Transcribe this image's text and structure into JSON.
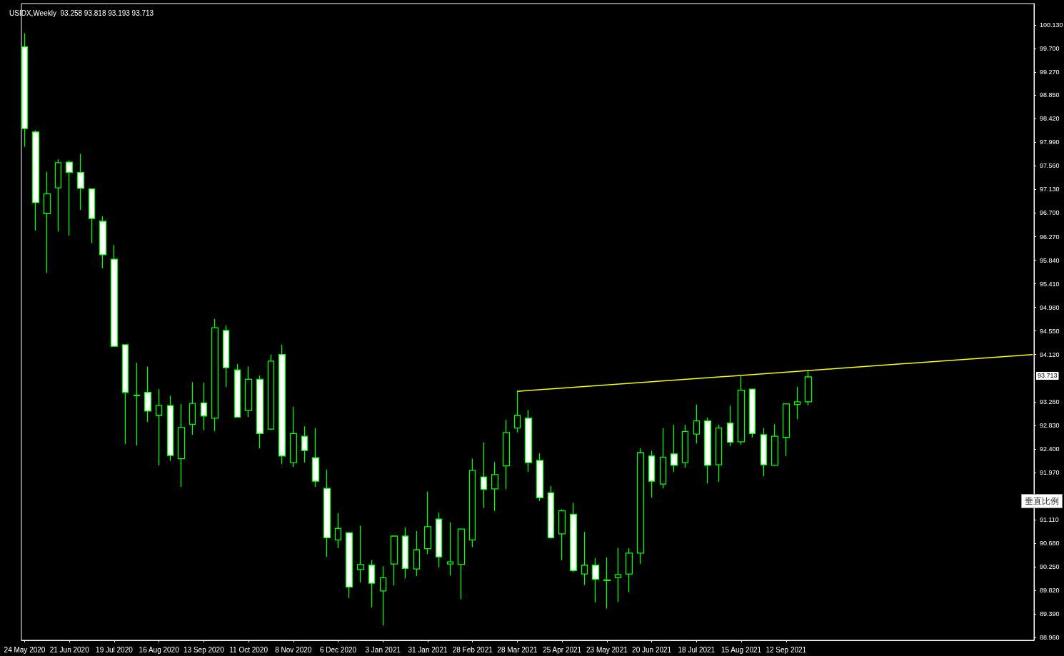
{
  "chart_data": {
    "type": "candlestick",
    "title": "USIDX,Weekly  93.258 93.818 93.193 93.713",
    "x": [
      "2020-05-24",
      "2020-05-31",
      "2020-06-07",
      "2020-06-14",
      "2020-06-21",
      "2020-06-28",
      "2020-07-05",
      "2020-07-12",
      "2020-07-19",
      "2020-07-26",
      "2020-08-02",
      "2020-08-09",
      "2020-08-16",
      "2020-08-23",
      "2020-08-30",
      "2020-09-06",
      "2020-09-13",
      "2020-09-20",
      "2020-09-27",
      "2020-10-04",
      "2020-10-11",
      "2020-10-18",
      "2020-10-25",
      "2020-11-01",
      "2020-11-08",
      "2020-11-15",
      "2020-11-22",
      "2020-11-29",
      "2020-12-06",
      "2020-12-13",
      "2020-12-20",
      "2020-12-27",
      "2021-01-03",
      "2021-01-10",
      "2021-01-17",
      "2021-01-24",
      "2021-01-31",
      "2021-02-07",
      "2021-02-14",
      "2021-02-21",
      "2021-02-28",
      "2021-03-07",
      "2021-03-14",
      "2021-03-21",
      "2021-03-28",
      "2021-04-04",
      "2021-04-11",
      "2021-04-18",
      "2021-04-25",
      "2021-05-02",
      "2021-05-09",
      "2021-05-16",
      "2021-05-23",
      "2021-05-30",
      "2021-06-06",
      "2021-06-13",
      "2021-06-20",
      "2021-06-27",
      "2021-07-04",
      "2021-07-11",
      "2021-07-18",
      "2021-07-25",
      "2021-08-01",
      "2021-08-08",
      "2021-08-15",
      "2021-08-22",
      "2021-08-29",
      "2021-09-05",
      "2021-09-12",
      "2021-09-19",
      "2021-09-26"
    ],
    "series": [
      {
        "color": "#00ff00",
        "ohlc": [
          [
            99.73,
            99.98,
            97.91,
            98.24
          ],
          [
            98.18,
            98.21,
            96.38,
            96.89
          ],
          [
            96.69,
            97.45,
            95.61,
            97.05
          ],
          [
            97.16,
            97.68,
            96.36,
            97.62
          ],
          [
            97.63,
            97.66,
            96.29,
            97.44
          ],
          [
            97.44,
            97.78,
            96.76,
            97.15
          ],
          [
            97.14,
            97.15,
            96.15,
            96.6
          ],
          [
            96.55,
            96.64,
            95.69,
            95.94
          ],
          [
            95.86,
            96.12,
            94.26,
            94.27
          ],
          [
            94.3,
            94.3,
            92.49,
            93.43
          ],
          [
            93.38,
            93.97,
            92.46,
            93.37
          ],
          [
            93.43,
            93.9,
            92.89,
            93.09
          ],
          [
            93.01,
            93.49,
            92.1,
            93.19
          ],
          [
            93.19,
            93.37,
            92.18,
            92.28
          ],
          [
            92.22,
            93.22,
            91.71,
            92.79
          ],
          [
            92.85,
            93.62,
            92.66,
            93.23
          ],
          [
            93.24,
            93.61,
            92.74,
            93.0
          ],
          [
            92.96,
            94.77,
            92.72,
            94.61
          ],
          [
            94.56,
            94.65,
            93.53,
            93.88
          ],
          [
            93.84,
            93.95,
            92.97,
            92.98
          ],
          [
            93.1,
            93.9,
            92.98,
            93.67
          ],
          [
            93.67,
            93.74,
            92.41,
            92.68
          ],
          [
            92.76,
            94.12,
            92.74,
            94.0
          ],
          [
            94.12,
            94.3,
            92.12,
            92.27
          ],
          [
            92.15,
            93.17,
            92.07,
            92.68
          ],
          [
            92.63,
            92.81,
            92.15,
            92.37
          ],
          [
            92.24,
            92.78,
            91.71,
            91.81
          ],
          [
            91.68,
            92.02,
            90.43,
            90.78
          ],
          [
            90.74,
            91.23,
            90.59,
            90.95
          ],
          [
            90.87,
            90.89,
            89.68,
            89.88
          ],
          [
            90.2,
            91.0,
            89.96,
            90.29
          ],
          [
            90.28,
            90.37,
            89.51,
            89.95
          ],
          [
            89.81,
            90.26,
            89.18,
            90.05
          ],
          [
            90.3,
            90.82,
            89.91,
            90.81
          ],
          [
            90.81,
            90.97,
            90.04,
            90.22
          ],
          [
            90.21,
            90.9,
            90.08,
            90.56
          ],
          [
            90.58,
            91.62,
            90.48,
            90.98
          ],
          [
            91.12,
            91.24,
            90.24,
            90.43
          ],
          [
            90.3,
            91.06,
            90.09,
            90.34
          ],
          [
            90.29,
            90.95,
            89.66,
            90.94
          ],
          [
            90.74,
            92.22,
            90.61,
            92.01
          ],
          [
            91.89,
            92.52,
            91.32,
            91.66
          ],
          [
            91.67,
            92.16,
            91.27,
            91.93
          ],
          [
            92.09,
            92.93,
            91.67,
            92.7
          ],
          [
            92.78,
            93.45,
            92.7,
            93.01
          ],
          [
            92.96,
            93.11,
            91.98,
            92.15
          ],
          [
            92.19,
            92.32,
            91.45,
            91.51
          ],
          [
            91.6,
            91.72,
            90.76,
            90.78
          ],
          [
            90.85,
            91.3,
            90.37,
            91.27
          ],
          [
            91.21,
            91.42,
            90.15,
            90.18
          ],
          [
            90.12,
            90.89,
            89.92,
            90.28
          ],
          [
            90.28,
            90.41,
            89.6,
            90.02
          ],
          [
            90.01,
            90.42,
            89.49,
            90.0
          ],
          [
            90.05,
            90.6,
            89.61,
            90.11
          ],
          [
            90.12,
            90.59,
            89.79,
            90.5
          ],
          [
            90.5,
            92.41,
            90.3,
            92.33
          ],
          [
            92.27,
            92.37,
            91.51,
            91.81
          ],
          [
            91.76,
            92.78,
            91.68,
            92.25
          ],
          [
            92.31,
            92.84,
            91.98,
            92.1
          ],
          [
            92.15,
            92.84,
            92.06,
            92.72
          ],
          [
            92.67,
            93.21,
            92.5,
            92.91
          ],
          [
            92.91,
            92.97,
            91.77,
            92.1
          ],
          [
            92.11,
            92.84,
            91.8,
            92.78
          ],
          [
            92.87,
            93.19,
            92.45,
            92.52
          ],
          [
            92.53,
            93.73,
            92.48,
            93.47
          ],
          [
            93.49,
            93.5,
            92.61,
            92.68
          ],
          [
            92.66,
            92.78,
            91.9,
            92.11
          ],
          [
            92.1,
            92.85,
            92.09,
            92.63
          ],
          [
            92.61,
            93.23,
            92.27,
            93.22
          ],
          [
            93.21,
            93.53,
            92.94,
            93.26
          ],
          [
            93.258,
            93.818,
            93.193,
            93.713
          ]
        ]
      },
      {
        "type": "line",
        "color": "#ffff00",
        "x": [
          "2021-03-28",
          "2022-02-13"
        ],
        "values": [
          93.45,
          94.12
        ]
      }
    ],
    "xlim": [
      "2020-05-22",
      "2022-02-14"
    ],
    "ylim": [
      88.91,
      100.52
    ],
    "xticks": [
      {
        "value": "2020-05-24",
        "label": "24 May 2020"
      },
      {
        "value": "2020-06-21",
        "label": "21 Jun 2020"
      },
      {
        "value": "2020-07-19",
        "label": "19 Jul 2020"
      },
      {
        "value": "2020-08-16",
        "label": "16 Aug 2020"
      },
      {
        "value": "2020-09-13",
        "label": "13 Sep 2020"
      },
      {
        "value": "2020-10-11",
        "label": "11 Oct 2020"
      },
      {
        "value": "2020-11-08",
        "label": "8 Nov 2020"
      },
      {
        "value": "2020-12-06",
        "label": "6 Dec 2020"
      },
      {
        "value": "2021-01-03",
        "label": "3 Jan 2021"
      },
      {
        "value": "2021-01-31",
        "label": "31 Jan 2021"
      },
      {
        "value": "2021-02-28",
        "label": "28 Feb 2021"
      },
      {
        "value": "2021-03-28",
        "label": "28 Mar 2021"
      },
      {
        "value": "2021-04-25",
        "label": "25 Apr 2021"
      },
      {
        "value": "2021-05-23",
        "label": "23 May 2021"
      },
      {
        "value": "2021-06-20",
        "label": "20 Jun 2021"
      },
      {
        "value": "2021-07-18",
        "label": "18 Jul 2021"
      },
      {
        "value": "2021-08-15",
        "label": "15 Aug 2021"
      },
      {
        "value": "2021-09-12",
        "label": "12 Sep 2021"
      }
    ],
    "yticks": [
      {
        "value": 88.96,
        "label": "88.960"
      },
      {
        "value": 89.39,
        "label": "89.390"
      },
      {
        "value": 89.82,
        "label": "89.820"
      },
      {
        "value": 90.25,
        "label": "90.250"
      },
      {
        "value": 90.68,
        "label": "90.680"
      },
      {
        "value": 91.11,
        "label": "91.110"
      },
      {
        "value": 91.97,
        "label": "91.970"
      },
      {
        "value": 92.4,
        "label": "92.400"
      },
      {
        "value": 92.83,
        "label": "92.830"
      },
      {
        "value": 93.26,
        "label": "93.260"
      },
      {
        "value": 94.12,
        "label": "94.120"
      },
      {
        "value": 94.55,
        "label": "94.550"
      },
      {
        "value": 94.98,
        "label": "94.980"
      },
      {
        "value": 95.41,
        "label": "95.410"
      },
      {
        "value": 95.84,
        "label": "95.840"
      },
      {
        "value": 96.27,
        "label": "96.270"
      },
      {
        "value": 96.7,
        "label": "96.700"
      },
      {
        "value": 97.13,
        "label": "97.130"
      },
      {
        "value": 97.56,
        "label": "97.560"
      },
      {
        "value": 97.99,
        "label": "97.990"
      },
      {
        "value": 98.42,
        "label": "98.420"
      },
      {
        "value": 98.85,
        "label": "98.850"
      },
      {
        "value": 99.27,
        "label": "99.270"
      },
      {
        "value": 99.7,
        "label": "99.700"
      },
      {
        "value": 100.13,
        "label": "100.130"
      }
    ],
    "annotations": [
      "93.713",
      "垂直比例"
    ]
  }
}
